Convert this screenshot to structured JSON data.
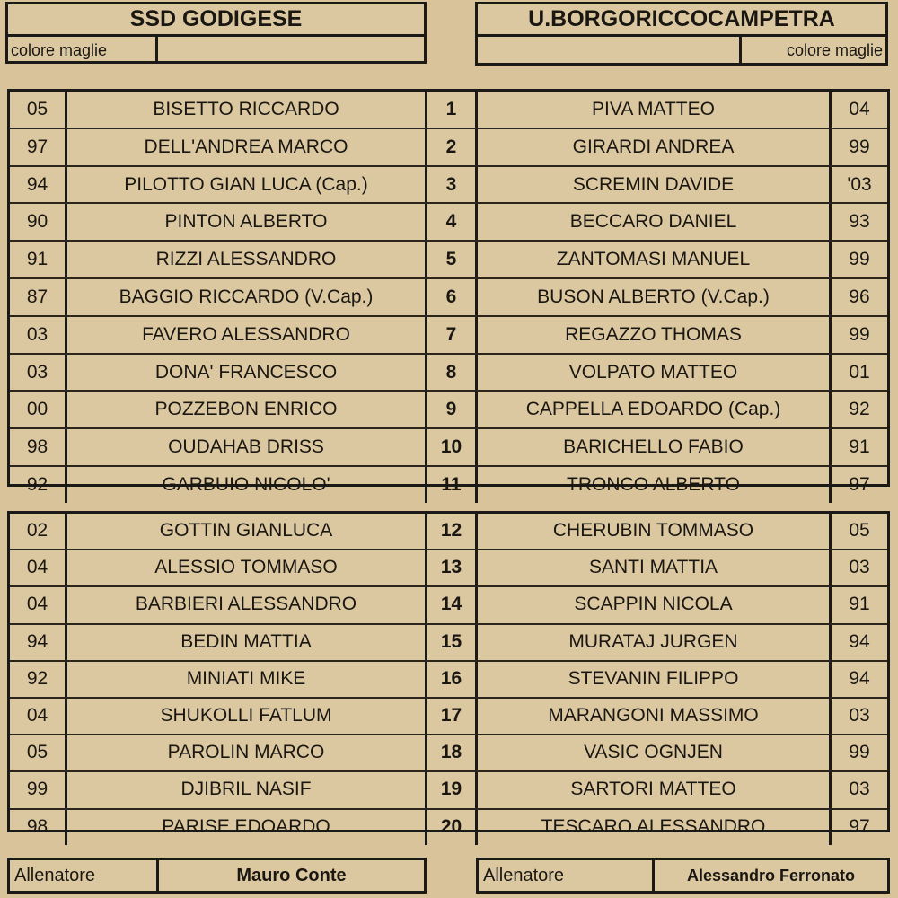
{
  "home": {
    "team": "SSD GODIGESE",
    "shirt_color_label": "colore maglie",
    "coach_label": "Allenatore",
    "coach": "Mauro Conte"
  },
  "away": {
    "team": "U.BORGORICCOCAMPETRA",
    "shirt_color_label": "colore maglie",
    "coach_label": "Allenatore",
    "coach": "Alessandro Ferronato"
  },
  "starters": [
    {
      "home_year": "05",
      "home_name": "BISETTO RICCARDO",
      "number": "1",
      "away_name": "PIVA MATTEO",
      "away_year": "04"
    },
    {
      "home_year": "97",
      "home_name": "DELL'ANDREA MARCO",
      "number": "2",
      "away_name": "GIRARDI ANDREA",
      "away_year": "99"
    },
    {
      "home_year": "94",
      "home_name": "PILOTTO GIAN LUCA (Cap.)",
      "number": "3",
      "away_name": "SCREMIN DAVIDE",
      "away_year": "'03"
    },
    {
      "home_year": "90",
      "home_name": "PINTON ALBERTO",
      "number": "4",
      "away_name": "BECCARO DANIEL",
      "away_year": "93"
    },
    {
      "home_year": "91",
      "home_name": "RIZZI ALESSANDRO",
      "number": "5",
      "away_name": "ZANTOMASI MANUEL",
      "away_year": "99"
    },
    {
      "home_year": "87",
      "home_name": "BAGGIO RICCARDO (V.Cap.)",
      "number": "6",
      "away_name": "BUSON ALBERTO (V.Cap.)",
      "away_year": "96"
    },
    {
      "home_year": "03",
      "home_name": "FAVERO ALESSANDRO",
      "number": "7",
      "away_name": "REGAZZO THOMAS",
      "away_year": "99"
    },
    {
      "home_year": "03",
      "home_name": "DONA' FRANCESCO",
      "number": "8",
      "away_name": "VOLPATO MATTEO",
      "away_year": "01"
    },
    {
      "home_year": "00",
      "home_name": "POZZEBON ENRICO",
      "number": "9",
      "away_name": "CAPPELLA EDOARDO (Cap.)",
      "away_year": "92"
    },
    {
      "home_year": "98",
      "home_name": "OUDAHAB DRISS",
      "number": "10",
      "away_name": "BARICHELLO FABIO",
      "away_year": "91"
    },
    {
      "home_year": "92",
      "home_name": "GARBUIO NICOLO'",
      "number": "11",
      "away_name": "TRONCO ALBERTO",
      "away_year": "97"
    }
  ],
  "substitutes": [
    {
      "home_year": "02",
      "home_name": "GOTTIN GIANLUCA",
      "number": "12",
      "away_name": "CHERUBIN TOMMASO",
      "away_year": "05"
    },
    {
      "home_year": "04",
      "home_name": "ALESSIO TOMMASO",
      "number": "13",
      "away_name": "SANTI MATTIA",
      "away_year": "03"
    },
    {
      "home_year": "04",
      "home_name": "BARBIERI ALESSANDRO",
      "number": "14",
      "away_name": "SCAPPIN NICOLA",
      "away_year": "91"
    },
    {
      "home_year": "94",
      "home_name": "BEDIN MATTIA",
      "number": "15",
      "away_name": "MURATAJ JURGEN",
      "away_year": "94"
    },
    {
      "home_year": "92",
      "home_name": "MINIATI MIKE",
      "number": "16",
      "away_name": "STEVANIN FILIPPO",
      "away_year": "94"
    },
    {
      "home_year": "04",
      "home_name": "SHUKOLLI FATLUM",
      "number": "17",
      "away_name": "MARANGONI MASSIMO",
      "away_year": "03"
    },
    {
      "home_year": "05",
      "home_name": "PAROLIN MARCO",
      "number": "18",
      "away_name": "VASIC OGNJEN",
      "away_year": "99"
    },
    {
      "home_year": "99",
      "home_name": "DJIBRIL NASIF",
      "number": "19",
      "away_name": "SARTORI MATTEO",
      "away_year": "03"
    },
    {
      "home_year": "98",
      "home_name": "PARISE EDOARDO",
      "number": "20",
      "away_name": "TESCARO ALESSANDRO",
      "away_year": "97"
    }
  ]
}
